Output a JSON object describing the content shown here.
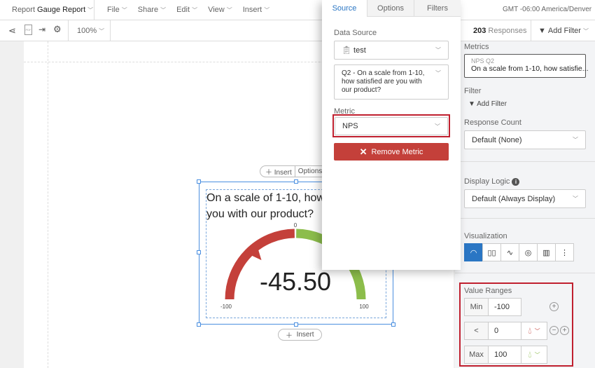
{
  "topbar": {
    "report_prefix": "Report",
    "report_name": "Gauge Report",
    "menus": [
      "File",
      "Share",
      "Edit",
      "View",
      "Insert"
    ],
    "timezone": "GMT -06:00 America/Denver"
  },
  "toolbar": {
    "zoom": "100%",
    "icons": [
      "share-icon",
      "pdf-icon",
      "export-icon",
      "gear-icon"
    ],
    "response_count": "203",
    "responses_label": "Responses",
    "add_filter": "Add Filter"
  },
  "widget": {
    "insert_label": "Insert",
    "options_label": "Options",
    "title": "On a scale of 1-10, how satisfied are you with our product?",
    "title_line1": "On a scale of 1-10, how",
    "title_line2": "you with our product?",
    "value": "-45.50",
    "min_label": "-100",
    "mid_label": "0",
    "max_label": "100",
    "bottom_insert": "Insert"
  },
  "gauge": {
    "value": -45.5,
    "min": -100,
    "max": 100,
    "threshold": 0,
    "low_color": "#c4403a",
    "high_color": "#8cbd4b"
  },
  "popup": {
    "tabs": [
      "Source",
      "Options",
      "Filters"
    ],
    "active_tab": "Source",
    "data_source_label": "Data Source",
    "data_source": "test",
    "question": "Q2 - On a scale from 1-10, how satisfied are you with our product?",
    "metric_label": "Metric",
    "metric": "NPS",
    "remove_metric": "Remove Metric"
  },
  "panel": {
    "metrics_label": "Metrics",
    "metric_title": "NPS Q2",
    "metric_desc": "On a scale from 1-10, how satisfie...",
    "filter_label": "Filter",
    "add_filter": "Add Filter",
    "response_count_label": "Response Count",
    "response_count": "Default (None)",
    "display_logic_label": "Display Logic",
    "display_logic": "Default (Always Display)",
    "visualization_label": "Visualization",
    "visualizations": [
      "gauge-icon",
      "bar-chart-icon",
      "line-chart-icon",
      "donut-icon",
      "table-icon",
      "more-icon"
    ],
    "value_ranges_label": "Value Ranges",
    "ranges": [
      {
        "label": "Min",
        "value": "-100"
      },
      {
        "label": "<",
        "value": "0",
        "color": "#c4403a"
      },
      {
        "label": "Max",
        "value": "100",
        "color": "#8cbd4b"
      }
    ]
  },
  "colors": {
    "accent": "#2a76c4",
    "highlight": "#c0202f",
    "remove": "#c4403a"
  }
}
